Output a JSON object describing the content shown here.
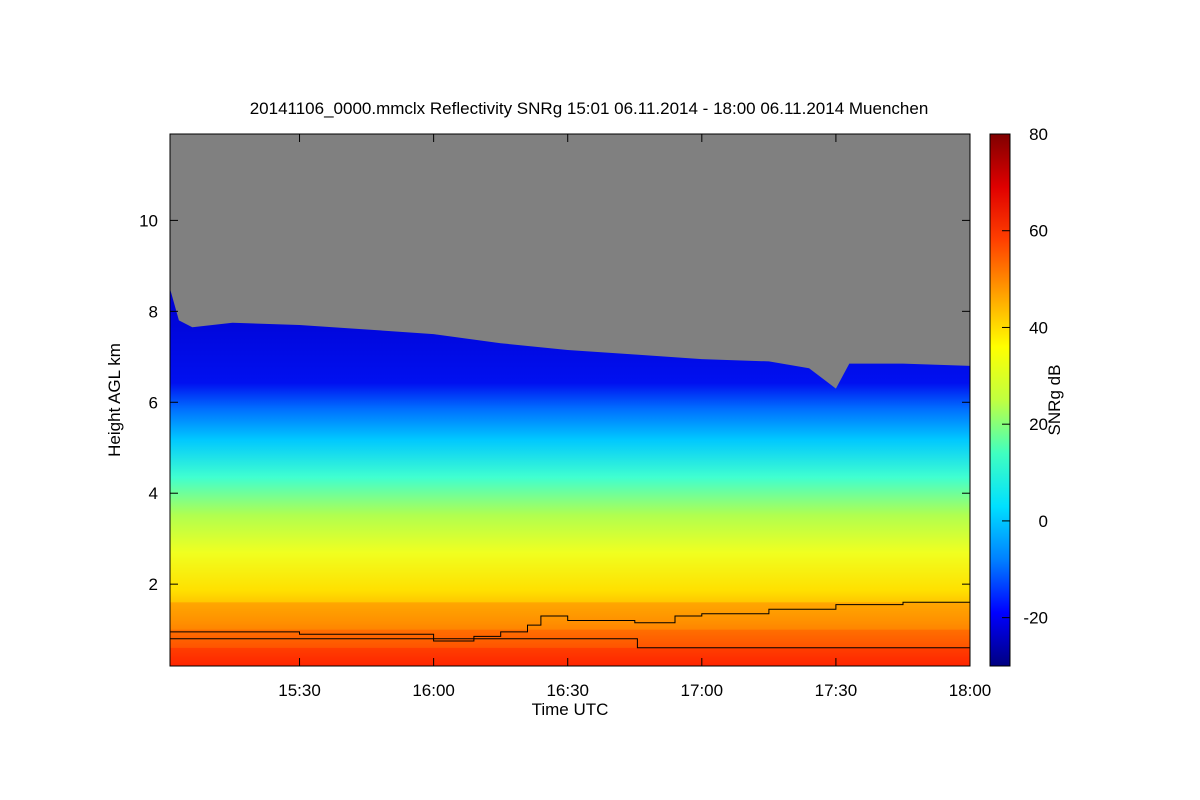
{
  "chart_data": {
    "type": "heatmap",
    "title": "20141106_0000.mmclx Reflectivity SNRg   15:01 06.11.2014 - 18:00 06.11.2014 Muenchen",
    "xlabel": "Time UTC",
    "ylabel": "Height AGL km",
    "x_ticks": [
      "15:30",
      "16:00",
      "16:30",
      "17:00",
      "17:30",
      "18:00"
    ],
    "x_tick_hours": [
      15.5,
      16.0,
      16.5,
      17.0,
      17.5,
      18.0
    ],
    "xlim_hours": [
      15.017,
      18.0
    ],
    "y_ticks": [
      "2",
      "4",
      "6",
      "8",
      "10"
    ],
    "y_tick_values": [
      2,
      4,
      6,
      8,
      10
    ],
    "ylim": [
      0.2,
      11.9
    ],
    "colorbar": {
      "label": "SNRg dB",
      "range": [
        -30,
        80
      ],
      "ticks": [
        "-20",
        "0",
        "20",
        "40",
        "60",
        "80"
      ],
      "tick_values": [
        -20,
        0,
        20,
        40,
        60,
        80
      ],
      "colors": [
        "#000080",
        "#0000ff",
        "#0080ff",
        "#00e0ff",
        "#40ffc0",
        "#c0ff40",
        "#ffff00",
        "#ffa000",
        "#ff4000",
        "#e00000",
        "#800000"
      ]
    },
    "no_signal_color": "#808080",
    "cloud_top_km": [
      [
        15.017,
        8.5
      ],
      [
        15.05,
        7.8
      ],
      [
        15.1,
        7.65
      ],
      [
        15.25,
        7.75
      ],
      [
        15.5,
        7.7
      ],
      [
        15.75,
        7.6
      ],
      [
        16.0,
        7.5
      ],
      [
        16.25,
        7.3
      ],
      [
        16.5,
        7.15
      ],
      [
        16.75,
        7.05
      ],
      [
        17.0,
        6.95
      ],
      [
        17.25,
        6.9
      ],
      [
        17.4,
        6.75
      ],
      [
        17.5,
        6.3
      ],
      [
        17.55,
        6.85
      ],
      [
        17.75,
        6.85
      ],
      [
        18.0,
        6.8
      ]
    ],
    "snr_profile_db": [
      [
        0.2,
        62
      ],
      [
        0.6,
        58
      ],
      [
        1.0,
        52
      ],
      [
        1.6,
        48
      ],
      [
        2.0,
        42
      ],
      [
        3.0,
        38
      ],
      [
        4.0,
        32
      ],
      [
        5.0,
        22
      ],
      [
        6.0,
        8
      ],
      [
        7.0,
        -8
      ],
      [
        7.6,
        -18
      ]
    ],
    "upper_line_km": [
      [
        15.017,
        0.95
      ],
      [
        15.5,
        0.9
      ],
      [
        16.0,
        0.75
      ],
      [
        16.15,
        0.85
      ],
      [
        16.25,
        0.95
      ],
      [
        16.35,
        1.1
      ],
      [
        16.4,
        1.3
      ],
      [
        16.5,
        1.2
      ],
      [
        16.75,
        1.15
      ],
      [
        16.9,
        1.3
      ],
      [
        17.0,
        1.35
      ],
      [
        17.25,
        1.45
      ],
      [
        17.5,
        1.55
      ],
      [
        17.75,
        1.6
      ],
      [
        18.0,
        1.6
      ]
    ],
    "lower_line_km": [
      [
        15.017,
        0.8
      ],
      [
        16.0,
        0.8
      ],
      [
        16.75,
        0.8
      ],
      [
        16.76,
        0.6
      ],
      [
        18.0,
        0.6
      ]
    ]
  }
}
